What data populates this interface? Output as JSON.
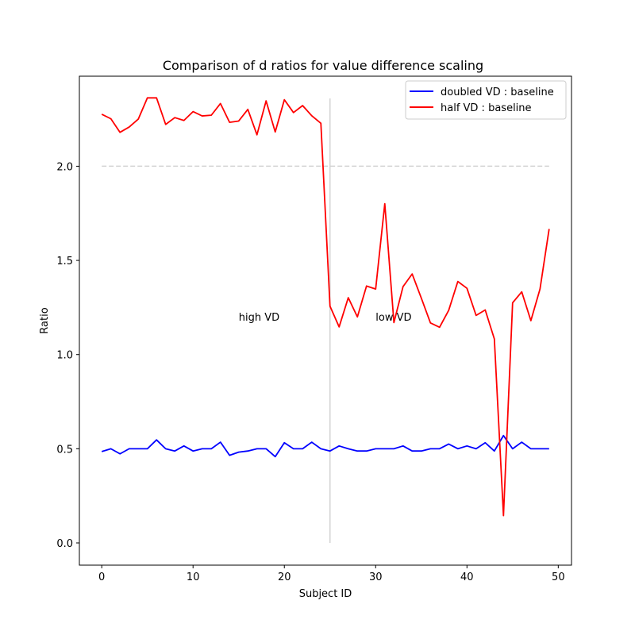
{
  "chart_data": {
    "type": "line",
    "title": "Comparison of d ratios for value difference scaling",
    "xlabel": "Subject ID",
    "ylabel": "Ratio",
    "xlim": [
      -2.45,
      51.45
    ],
    "ylim": [
      -0.118,
      2.478
    ],
    "xticks": [
      0,
      10,
      20,
      30,
      40,
      50
    ],
    "yticks": [
      0.0,
      0.5,
      1.0,
      1.5,
      2.0
    ],
    "ytick_labels": [
      "0.0",
      "0.5",
      "1.0",
      "1.5",
      "2.0"
    ],
    "grid": false,
    "legend_position": "top-right",
    "x": [
      0,
      1,
      2,
      3,
      4,
      5,
      6,
      7,
      8,
      9,
      10,
      11,
      12,
      13,
      14,
      15,
      16,
      17,
      18,
      19,
      20,
      21,
      22,
      23,
      24,
      25,
      26,
      27,
      28,
      29,
      30,
      31,
      32,
      33,
      34,
      35,
      36,
      37,
      38,
      39,
      40,
      41,
      42,
      43,
      44,
      45,
      46,
      47,
      48,
      49
    ],
    "series": [
      {
        "name": "doubled VD : baseline",
        "color": "#0000ff",
        "values": [
          0.485,
          0.5,
          0.473,
          0.5,
          0.5,
          0.5,
          0.547,
          0.5,
          0.488,
          0.515,
          0.488,
          0.5,
          0.5,
          0.535,
          0.465,
          0.482,
          0.488,
          0.5,
          0.5,
          0.458,
          0.532,
          0.5,
          0.5,
          0.535,
          0.5,
          0.488,
          0.515,
          0.5,
          0.488,
          0.488,
          0.5,
          0.5,
          0.5,
          0.515,
          0.488,
          0.488,
          0.5,
          0.5,
          0.525,
          0.5,
          0.515,
          0.5,
          0.532,
          0.488,
          0.57,
          0.5,
          0.535,
          0.5,
          0.5,
          0.5
        ]
      },
      {
        "name": "half VD : baseline",
        "color": "#ff0000",
        "values": [
          2.276,
          2.252,
          2.18,
          2.208,
          2.25,
          2.363,
          2.363,
          2.222,
          2.258,
          2.243,
          2.29,
          2.267,
          2.271,
          2.333,
          2.233,
          2.24,
          2.302,
          2.167,
          2.347,
          2.182,
          2.353,
          2.285,
          2.322,
          2.268,
          2.228,
          1.257,
          1.147,
          1.302,
          1.2,
          1.364,
          1.348,
          1.801,
          1.17,
          1.361,
          1.428,
          1.3,
          1.168,
          1.145,
          1.235,
          1.388,
          1.352,
          1.208,
          1.237,
          1.083,
          0.145,
          1.275,
          1.333,
          1.18,
          1.348,
          1.667
        ]
      }
    ],
    "reference_lines": {
      "horizontal": {
        "y": 2.0,
        "xmin": 0,
        "xmax": 49,
        "color": "#d3d3d3",
        "style": "dashed"
      },
      "vertical": {
        "x": 25,
        "ymin": 0.0,
        "ymax": 2.36,
        "color": "#d3d3d3",
        "style": "solid"
      }
    },
    "annotations": [
      {
        "text": "high VD",
        "x": 15,
        "y": 1.18
      },
      {
        "text": "low VD",
        "x": 30,
        "y": 1.18
      }
    ]
  }
}
